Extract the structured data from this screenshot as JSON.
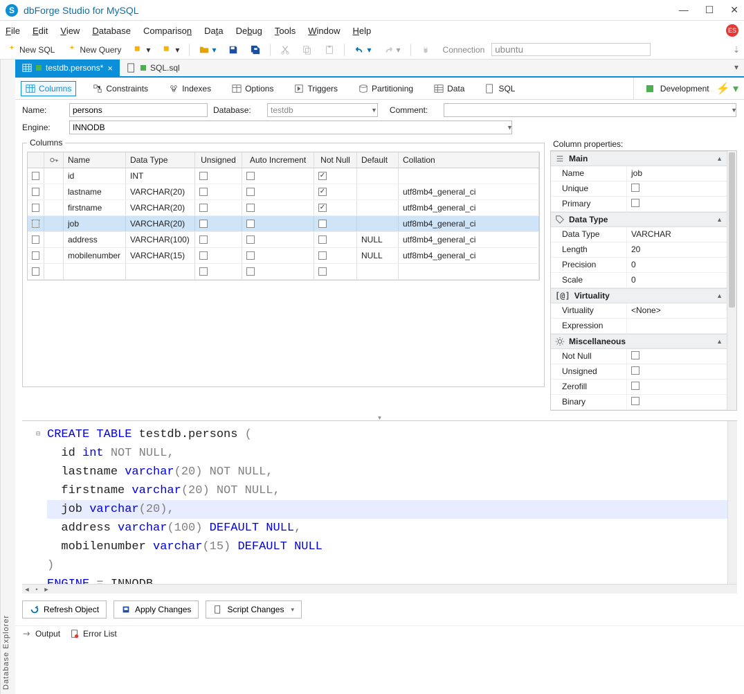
{
  "window": {
    "title": "dbForge Studio for MySQL"
  },
  "menu": {
    "items": [
      "File",
      "Edit",
      "View",
      "Database",
      "Comparison",
      "Data",
      "Debug",
      "Tools",
      "Window",
      "Help"
    ]
  },
  "toolbar": {
    "new_sql": "New SQL",
    "new_query": "New Query",
    "connection_label": "Connection",
    "connection_value": "ubuntu"
  },
  "tabs": {
    "active": {
      "label": "testdb.persons*"
    },
    "other": {
      "label": "SQL.sql"
    }
  },
  "sub_tabs": {
    "items": [
      "Columns",
      "Constraints",
      "Indexes",
      "Options",
      "Triggers",
      "Partitioning",
      "Data",
      "SQL"
    ],
    "env": "Development"
  },
  "form": {
    "name_label": "Name:",
    "name_value": "persons",
    "db_label": "Database:",
    "db_value": "testdb",
    "comment_label": "Comment:",
    "comment_value": "",
    "engine_label": "Engine:",
    "engine_value": "INNODB"
  },
  "grid": {
    "legend": "Columns",
    "headers": {
      "name": "Name",
      "datatype": "Data Type",
      "unsigned": "Unsigned",
      "autoinc": "Auto Increment",
      "notnull": "Not Null",
      "default": "Default",
      "collation": "Collation"
    },
    "rows": [
      {
        "name": "id",
        "type": "INT",
        "unsigned": false,
        "autoinc": false,
        "notnull": true,
        "default": "",
        "collation": ""
      },
      {
        "name": "lastname",
        "type": "VARCHAR(20)",
        "unsigned": false,
        "autoinc": false,
        "notnull": true,
        "default": "",
        "collation": "utf8mb4_general_ci"
      },
      {
        "name": "firstname",
        "type": "VARCHAR(20)",
        "unsigned": false,
        "autoinc": false,
        "notnull": true,
        "default": "",
        "collation": "utf8mb4_general_ci"
      },
      {
        "name": "job",
        "type": "VARCHAR(20)",
        "unsigned": false,
        "autoinc": false,
        "notnull": false,
        "default": "",
        "collation": "utf8mb4_general_ci",
        "selected": true
      },
      {
        "name": "address",
        "type": "VARCHAR(100)",
        "unsigned": false,
        "autoinc": false,
        "notnull": false,
        "default": "NULL",
        "collation": "utf8mb4_general_ci"
      },
      {
        "name": "mobilenumber",
        "type": "VARCHAR(15)",
        "unsigned": false,
        "autoinc": false,
        "notnull": false,
        "default": "NULL",
        "collation": "utf8mb4_general_ci"
      }
    ]
  },
  "props": {
    "title": "Column properties:",
    "main": {
      "header": "Main",
      "name_k": "Name",
      "name_v": "job",
      "unique_k": "Unique",
      "primary_k": "Primary"
    },
    "datatype": {
      "header": "Data Type",
      "datatype_k": "Data Type",
      "datatype_v": "VARCHAR",
      "length_k": "Length",
      "length_v": "20",
      "precision_k": "Precision",
      "precision_v": "0",
      "scale_k": "Scale",
      "scale_v": "0"
    },
    "virtuality": {
      "header": "Virtuality",
      "virt_k": "Virtuality",
      "virt_v": "<None>",
      "expr_k": "Expression",
      "expr_v": ""
    },
    "misc": {
      "header": "Miscellaneous",
      "notnull_k": "Not Null",
      "unsigned_k": "Unsigned",
      "zerofill_k": "Zerofill",
      "binary_k": "Binary"
    }
  },
  "sql": {
    "tokens": {
      "l1_a": "CREATE TABLE ",
      "l1_b": "testdb.persons ",
      "l1_c": "(",
      "l2_a": "  id ",
      "l2_b": "int ",
      "l2_c": "NOT NULL",
      "l2_d": ",",
      "l3_a": "  lastname ",
      "l3_b": "varchar",
      "l3_c": "(20) ",
      "l3_d": "NOT NULL",
      "l3_e": ",",
      "l4_a": "  firstname ",
      "l4_b": "varchar",
      "l4_c": "(20) ",
      "l4_d": "NOT NULL",
      "l4_e": ",",
      "l5_a": "  job ",
      "l5_b": "varchar",
      "l5_c": "(20)",
      "l5_d": ",",
      "l6_a": "  address ",
      "l6_b": "varchar",
      "l6_c": "(100) ",
      "l6_d": "DEFAULT NULL",
      "l6_e": ",",
      "l7_a": "  mobilenumber ",
      "l7_b": "varchar",
      "l7_c": "(15) ",
      "l7_d": "DEFAULT NULL",
      "l8_a": ")",
      "l9_a": "ENGINE ",
      "l9_b": "= ",
      "l9_c": "INNODB",
      "l9_d": ","
    }
  },
  "buttons": {
    "refresh": "Refresh Object",
    "apply": "Apply Changes",
    "script": "Script Changes"
  },
  "status": {
    "output": "Output",
    "error": "Error List"
  },
  "explorer_rail": "Database Explorer",
  "colors": {
    "accent": "#0b8fd9",
    "selection": "#cfe4f7",
    "green": "#4caf50",
    "sql_kw": "#0000e0",
    "sql_gray": "#808080",
    "hl": "#e8ecff"
  }
}
